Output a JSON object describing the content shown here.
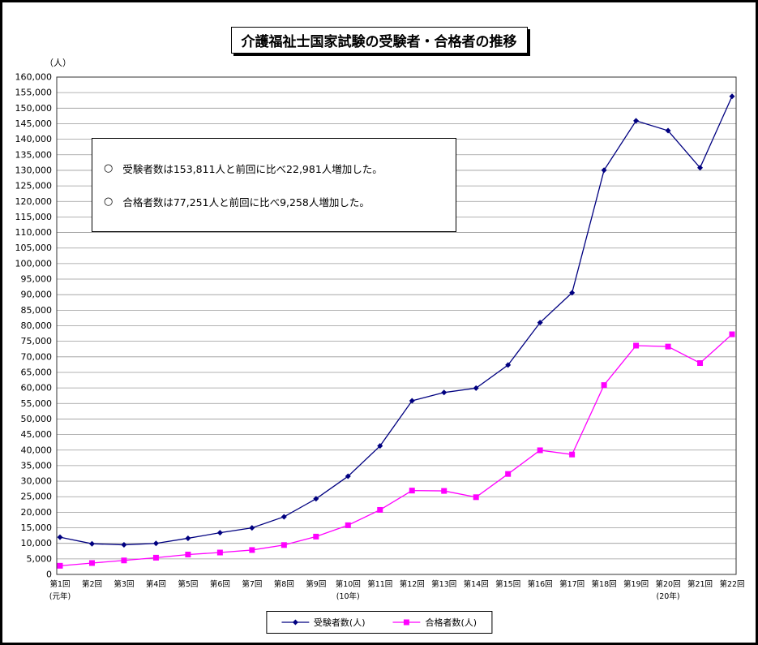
{
  "page": {
    "title": "介護福祉士国家試験の受験者・合格者の推移",
    "y_unit_label": "（人）"
  },
  "annotations": {
    "items": [
      {
        "bullet": "○",
        "text": "受験者数は153,811人と前回に比べ22,981人増加した。"
      },
      {
        "bullet": "○",
        "text": "合格者数は77,251人と前回に比べ9,258人増加した。"
      }
    ]
  },
  "legend": {
    "series1_label": "受験者数(人)",
    "series2_label": "合格者数(人)"
  },
  "chart_data": {
    "type": "line",
    "title": "介護福祉士国家試験の受験者・合格者の推移",
    "xlabel": "",
    "ylabel": "（人）",
    "ylim": [
      0,
      160000
    ],
    "ytick_step": 5000,
    "grid": "horizontal-gridlines",
    "legend_position": "bottom",
    "categories": [
      "第1回",
      "第2回",
      "第3回",
      "第4回",
      "第5回",
      "第6回",
      "第7回",
      "第8回",
      "第9回",
      "第10回",
      "第11回",
      "第12回",
      "第13回",
      "第14回",
      "第15回",
      "第16回",
      "第17回",
      "第18回",
      "第19回",
      "第20回",
      "第21回",
      "第22回"
    ],
    "x_sub_labels": [
      {
        "index": 0,
        "label": "(元年)"
      },
      {
        "index": 9,
        "label": "(10年)"
      },
      {
        "index": 19,
        "label": "(20年)"
      }
    ],
    "series": [
      {
        "name": "受験者数(人)",
        "color": "#000080",
        "marker": "diamond",
        "values": [
          11973,
          9868,
          9516,
          9987,
          11628,
          13402,
          14982,
          18544,
          24325,
          31567,
          41325,
          55853,
          58517,
          59943,
          67363,
          81008,
          90602,
          130034,
          145946,
          142765,
          130830,
          153811
        ]
      },
      {
        "name": "合格者数(人)",
        "color": "#FF00FF",
        "marker": "square",
        "values": [
          2782,
          3664,
          4498,
          5379,
          6402,
          7041,
          7845,
          9450,
          12163,
          15819,
          20758,
          26973,
          26862,
          24845,
          32319,
          39938,
          38576,
          60910,
          73606,
          73302,
          67993,
          77251
        ]
      }
    ]
  }
}
